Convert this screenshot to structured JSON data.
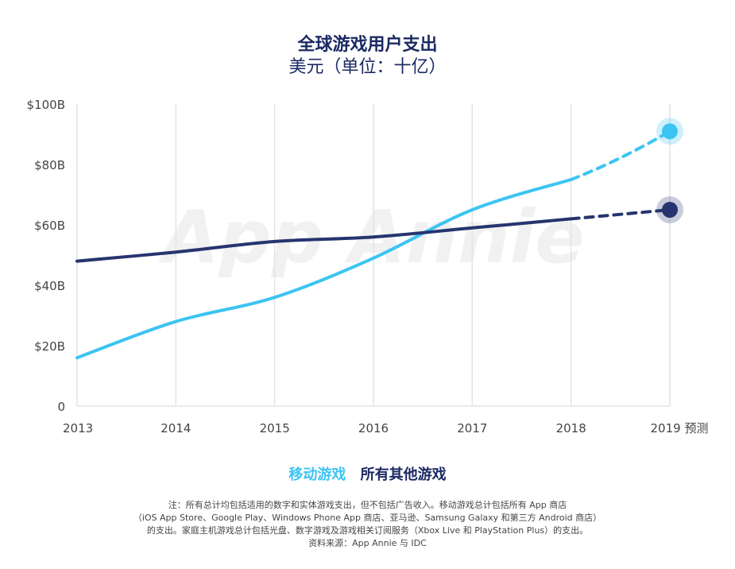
{
  "colors": {
    "mobile": "#3cc4f2",
    "other": "#26346f",
    "grid": "#e4e4e4",
    "axis_text": "#444444",
    "title": "#1b2a63"
  },
  "chart_data": {
    "type": "line",
    "title": "全球游戏用户支出",
    "subtitle": "美元（单位：十亿）",
    "categories": [
      "2013",
      "2014",
      "2015",
      "2016",
      "2017",
      "2018",
      "2019 预测"
    ],
    "y_ticks": [
      {
        "value": 0,
        "label": "0"
      },
      {
        "value": 20,
        "label": "$20B"
      },
      {
        "value": 40,
        "label": "$40B"
      },
      {
        "value": 60,
        "label": "$60B"
      },
      {
        "value": 80,
        "label": "$80B"
      },
      {
        "value": 100,
        "label": "$100B"
      }
    ],
    "ylim": [
      0,
      100
    ],
    "forecast_from_index": 5,
    "series": [
      {
        "name": "移动游戏",
        "color": "#3cc4f2",
        "values": [
          16,
          28,
          36,
          49,
          65,
          75,
          91
        ]
      },
      {
        "name": "所有其他游戏",
        "color": "#26346f",
        "values": [
          48,
          51,
          54.5,
          56,
          59,
          62,
          65
        ]
      }
    ],
    "watermark": "App Annie"
  },
  "notes": [
    "注：所有总计均包括适用的数字和实体游戏支出，但不包括广告收入。移动游戏总计包括所有 App 商店",
    "（iOS App Store、Google Play、Windows Phone App 商店、亚马逊、Samsung Galaxy 和第三方 Android 商店）",
    "的支出。家庭主机游戏总计包括光盘、数字游戏及游戏相关订阅服务（Xbox Live 和 PlayStation Plus）的支出。",
    "资料来源：App Annie 与 IDC"
  ]
}
